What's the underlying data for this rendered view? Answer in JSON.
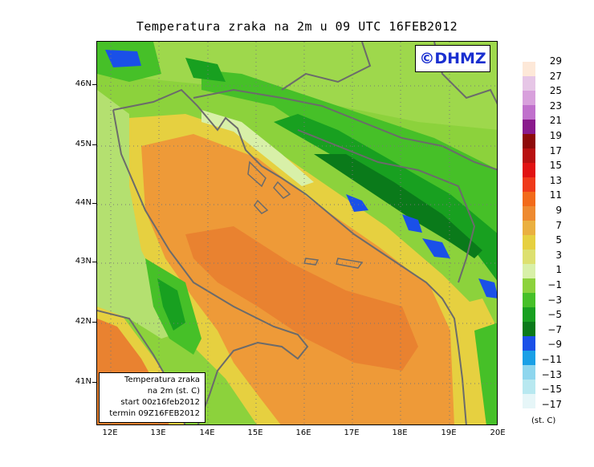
{
  "title": "Temperatura zraka na 2m u 09 UTC 16FEB2012",
  "logo": "©DHMZ",
  "info": {
    "line1": "Temperatura zraka",
    "line2": "na 2m (st. C)",
    "line3": "start 00z16feb2012",
    "line4": "termin 09Z16FEB2012"
  },
  "lat_labels": [
    "46N",
    "45N",
    "44N",
    "43N",
    "42N",
    "41N"
  ],
  "lon_labels": [
    "12E",
    "13E",
    "14E",
    "15E",
    "16E",
    "17E",
    "18E",
    "19E",
    "20E"
  ],
  "legend": {
    "labels": [
      "29",
      "27",
      "25",
      "23",
      "21",
      "19",
      "17",
      "15",
      "13",
      "11",
      "9",
      "7",
      "5",
      "3",
      "1",
      "−1",
      "−3",
      "−5",
      "−7",
      "−9",
      "−11",
      "−13",
      "−15",
      "−17"
    ],
    "colors": [
      "#fde8d8",
      "#e6c6e6",
      "#d8a0dc",
      "#c070cc",
      "#8a1a8c",
      "#8e0a0a",
      "#b81010",
      "#e11212",
      "#ef3a1a",
      "#f26a1a",
      "#ee8a30",
      "#eab040",
      "#e6d040",
      "#dde070",
      "#d8f0a8",
      "#8cd23c",
      "#46c028",
      "#18a020",
      "#0a7a1a",
      "#1a50e8",
      "#1aa0e6",
      "#8ed6ee",
      "#b8e8f0",
      "#e6f6f8"
    ],
    "unit": "(st. C)"
  }
}
